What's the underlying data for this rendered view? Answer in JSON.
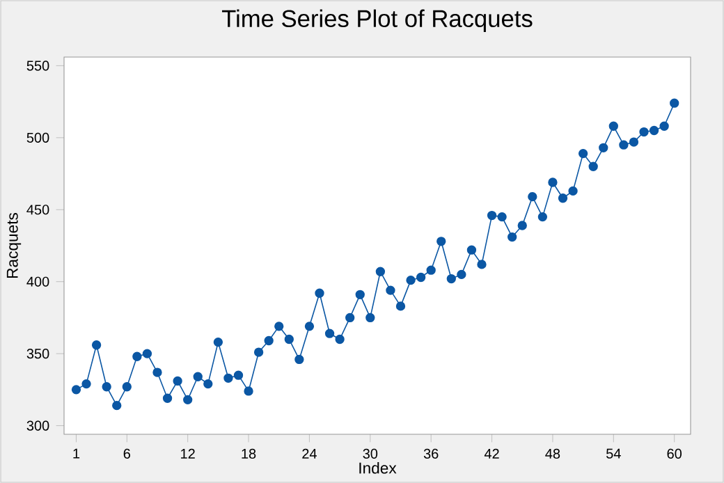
{
  "chart_data": {
    "type": "line",
    "title": "Time Series Plot of Racquets",
    "xlabel": "Index",
    "ylabel": "Racquets",
    "x": [
      1,
      2,
      3,
      4,
      5,
      6,
      7,
      8,
      9,
      10,
      11,
      12,
      13,
      14,
      15,
      16,
      17,
      18,
      19,
      20,
      21,
      22,
      23,
      24,
      25,
      26,
      27,
      28,
      29,
      30,
      31,
      32,
      33,
      34,
      35,
      36,
      37,
      38,
      39,
      40,
      41,
      42,
      43,
      44,
      45,
      46,
      47,
      48,
      49,
      50,
      51,
      52,
      53,
      54,
      55,
      56,
      57,
      58,
      59,
      60
    ],
    "series": [
      {
        "color": "#0b57a4",
        "values": [
          325,
          329,
          356,
          327,
          314,
          327,
          348,
          350,
          337,
          319,
          331,
          318,
          334,
          329,
          358,
          333,
          335,
          324,
          351,
          359,
          369,
          360,
          346,
          369,
          392,
          364,
          360,
          375,
          391,
          375,
          407,
          394,
          383,
          401,
          403,
          408,
          428,
          402,
          405,
          422,
          412,
          446,
          445,
          431,
          439,
          459,
          445,
          469,
          458,
          463,
          489,
          480,
          493,
          508,
          495,
          497,
          504,
          505,
          508,
          524
        ]
      }
    ],
    "xlim": [
      -0.2,
      61.6
    ],
    "ylim": [
      294,
      556
    ],
    "xticks": [
      1,
      6,
      12,
      18,
      24,
      30,
      36,
      42,
      48,
      54,
      60
    ],
    "yticks": [
      300,
      350,
      400,
      450,
      500,
      550
    ],
    "marker": "circle",
    "line_style": "solid"
  }
}
